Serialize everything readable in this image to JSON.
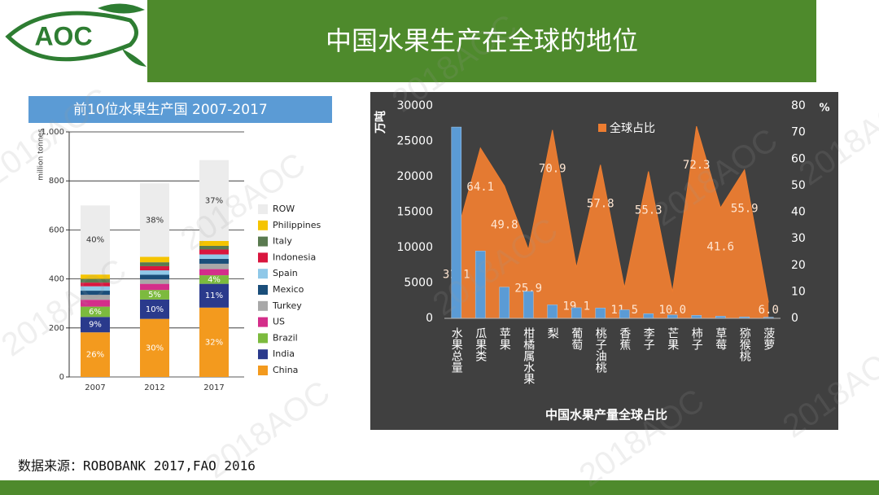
{
  "header": {
    "logo": "AOC",
    "title": "中国水果生产在全球的地位"
  },
  "watermark": "2018AOC",
  "chart_data": [
    {
      "type": "stacked_bar",
      "title": "前10位水果生产国 2007-2017",
      "ylabel": "million tonnes",
      "categories": [
        "2007",
        "2012",
        "2017"
      ],
      "ylim": [
        0,
        1000
      ],
      "yticks": [
        0,
        200,
        400,
        600,
        800,
        {
          "value": 1000,
          "label": "1,000"
        }
      ],
      "grid": true,
      "series": [
        {
          "name": "ROW",
          "color": "#ececec",
          "values": [
            282,
            300,
            330
          ],
          "share_labels": [
            "40%",
            "38%",
            "37%"
          ]
        },
        {
          "name": "Philippines",
          "color": "#f5c400",
          "values": [
            18,
            22,
            20
          ]
        },
        {
          "name": "Italy",
          "color": "#5a7a50",
          "values": [
            15,
            16,
            15
          ]
        },
        {
          "name": "Indonesia",
          "color": "#d9163e",
          "values": [
            15,
            17,
            20
          ]
        },
        {
          "name": "Spain",
          "color": "#8fc8e8",
          "values": [
            18,
            18,
            18
          ]
        },
        {
          "name": "Mexico",
          "color": "#1a4e7a",
          "values": [
            17,
            19,
            20
          ]
        },
        {
          "name": "Turkey",
          "color": "#a8a8a8",
          "values": [
            20,
            18,
            22
          ]
        },
        {
          "name": "US",
          "color": "#d42e8a",
          "values": [
            28,
            25,
            25
          ]
        },
        {
          "name": "Brazil",
          "color": "#7cba3e",
          "values": [
            42,
            39,
            35
          ],
          "share_labels": [
            "6%",
            "5%",
            "4%"
          ]
        },
        {
          "name": "India",
          "color": "#2a3a8c",
          "values": [
            63,
            79,
            97
          ],
          "share_labels": [
            "9%",
            "10%",
            "11%"
          ]
        },
        {
          "name": "China",
          "color": "#f39a1e",
          "values": [
            182,
            237,
            283
          ],
          "share_labels": [
            "26%",
            "30%",
            "32%"
          ]
        }
      ]
    },
    {
      "type": "combo",
      "xlabel": "中国水果产量全球占比",
      "ylabel": "万吨",
      "y2label": "%",
      "categories": [
        "水果总量",
        "瓜果类",
        "苹果",
        "柑橘属水果",
        "梨",
        "葡萄",
        "桃子油桃",
        "香蕉",
        "李子",
        "芒果",
        "柿子",
        "草莓",
        "猕猴桃",
        "菠萝"
      ],
      "ylim": [
        0,
        30000
      ],
      "yticks": [
        0,
        5000,
        10000,
        15000,
        20000,
        25000,
        30000
      ],
      "y2lim": [
        0,
        80
      ],
      "y2ticks": [
        0,
        10,
        20,
        30,
        40,
        50,
        60,
        70,
        80
      ],
      "series": [
        {
          "type": "bar",
          "color": "#5b9bd5",
          "values": [
            27000,
            9500,
            4400,
            3800,
            1900,
            1500,
            1450,
            1200,
            650,
            480,
            420,
            300,
            200,
            150
          ]
        },
        {
          "type": "area",
          "name": "全球占比",
          "axis": "y2",
          "color": "#ed7d31",
          "values": [
            31.1,
            64.1,
            49.8,
            25.9,
            70.9,
            19.1,
            57.8,
            11.5,
            55.3,
            10.0,
            72.3,
            41.6,
            55.9,
            6.0
          ],
          "value_labels": [
            "31.1",
            "64.1",
            "49.8",
            "25.9",
            "70.9",
            "19.1",
            "57.8",
            "11.5",
            "55.3",
            "10.0",
            "72.3",
            "41.6",
            "55.9",
            "6.0"
          ]
        }
      ]
    }
  ],
  "footer": {
    "source": "数据来源：ROBOBANK 2017,FAO 2016"
  }
}
